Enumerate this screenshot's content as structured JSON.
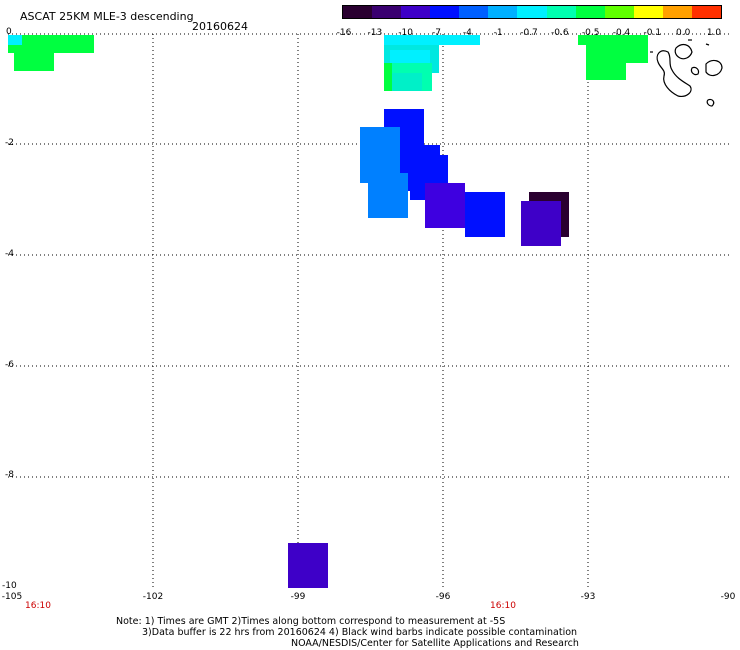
{
  "header": {
    "title": "ASCAT 25KM MLE-3 descending",
    "date": "20160624"
  },
  "colorbar": {
    "labels": [
      "-16",
      "-13",
      "-10",
      "-7",
      "-4",
      "-1",
      "-0.7",
      "-0.6",
      "-0.5",
      "-0.4",
      "-0.1",
      "0.0",
      "1.0"
    ],
    "colors": [
      "#2a0030",
      "#3a0070",
      "#3e00c8",
      "#0010ff",
      "#0060ff",
      "#00b0ff",
      "#00f0ff",
      "#00ffb0",
      "#00ff40",
      "#60ff00",
      "#ffff00",
      "#ffa000",
      "#ff3000"
    ]
  },
  "axes": {
    "lat_labels": [
      "0",
      "-2",
      "-4",
      "-6",
      "-8",
      "-10"
    ],
    "lon_labels": [
      "-105",
      "-102",
      "-99",
      "-96",
      "-93",
      "-90"
    ],
    "time_labels": [
      "16:10",
      "16:10"
    ]
  },
  "notes": {
    "line1": "Note: 1) Times are GMT 2)Times along bottom correspond to measurement at -5S",
    "line2": "3)Data buffer is 22 hrs from 20160624 4) Black wind barbs indicate possible contamination",
    "line3": "NOAA/NESDIS/Center for Satellite Applications and Research"
  }
}
